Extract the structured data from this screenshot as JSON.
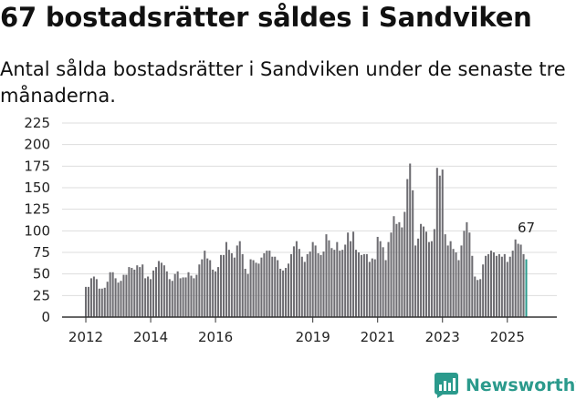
{
  "header": {
    "title": "67 bostadsrätter såldes i Sandviken",
    "subtitle": "Antal sålda bostadsrätter i Sandviken under de senaste tre månaderna."
  },
  "brand": {
    "name": "Newsworthy"
  },
  "colors": {
    "bar": "#6e6d72",
    "highlight": "#2b9a8c",
    "grid": "#dddddd",
    "axis": "#333333",
    "text": "#222222"
  },
  "chart_data": {
    "type": "bar",
    "title": "67 bostadsrätter såldes i Sandviken",
    "subtitle": "Antal sålda bostadsrätter i Sandviken under de senaste tre månaderna.",
    "xlabel": "",
    "ylabel": "",
    "ylim": [
      0,
      225
    ],
    "yticks": [
      0,
      25,
      50,
      75,
      100,
      125,
      150,
      175,
      200,
      225
    ],
    "start_year": 2012,
    "start_month": 1,
    "xtick_labels": [
      "2012",
      "2014",
      "2016",
      "2019",
      "2021",
      "2023",
      "2025"
    ],
    "highlight_label": "67",
    "values": [
      35,
      35,
      45,
      47,
      44,
      33,
      33,
      34,
      41,
      52,
      52,
      45,
      40,
      42,
      49,
      49,
      58,
      57,
      55,
      60,
      58,
      61,
      45,
      47,
      44,
      54,
      58,
      65,
      63,
      60,
      53,
      44,
      42,
      50,
      53,
      45,
      46,
      46,
      52,
      48,
      45,
      49,
      61,
      67,
      77,
      68,
      66,
      55,
      53,
      58,
      72,
      72,
      87,
      78,
      74,
      69,
      83,
      88,
      73,
      56,
      50,
      67,
      66,
      63,
      62,
      69,
      74,
      77,
      77,
      70,
      70,
      66,
      56,
      54,
      57,
      62,
      73,
      82,
      88,
      79,
      70,
      64,
      73,
      76,
      87,
      83,
      74,
      72,
      76,
      96,
      89,
      80,
      78,
      87,
      77,
      78,
      84,
      98,
      88,
      99,
      78,
      75,
      72,
      73,
      73,
      64,
      68,
      67,
      93,
      88,
      81,
      66,
      87,
      98,
      117,
      108,
      110,
      104,
      122,
      160,
      178,
      147,
      83,
      91,
      108,
      105,
      99,
      87,
      88,
      102,
      173,
      164,
      171,
      96,
      83,
      88,
      79,
      75,
      66,
      83,
      100,
      110,
      98,
      71,
      47,
      43,
      44,
      61,
      71,
      73,
      77,
      75,
      71,
      73,
      70,
      73,
      64,
      70,
      77,
      90,
      85,
      84,
      73,
      67
    ]
  }
}
